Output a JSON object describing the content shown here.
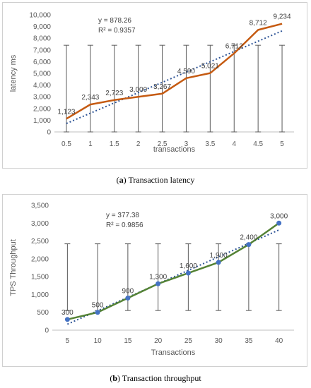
{
  "chart_data": [
    {
      "type": "line",
      "panel_letter": "a",
      "caption": "Transaction latency",
      "xlabel": "transactions",
      "ylabel": "latency ms",
      "categories": [
        "0.5",
        "1",
        "1.5",
        "2",
        "2.5",
        "3",
        "3.5",
        "4",
        "4.5",
        "5"
      ],
      "series": [
        {
          "values": [
            1123,
            2343,
            2723,
            3000,
            3267,
            4590,
            5021,
            6712,
            8712,
            9234
          ],
          "data_labels": [
            "1,123",
            "2,343",
            "2,723",
            "3,000",
            "3,267",
            "4,590",
            "5,021",
            "6,712",
            "8,712",
            "9,234"
          ],
          "color": "#c55a11",
          "markers": false
        }
      ],
      "trendline": {
        "type": "linear",
        "color": "#2f5597",
        "style": "dotted",
        "equation": "y = 878.26",
        "r_squared": "R² = 0.9357"
      },
      "error_bars": {
        "low": 0,
        "high": 7400,
        "color": "#595959"
      },
      "ylim": [
        0,
        10000
      ],
      "yticks": [
        "0",
        "1,000",
        "2,000",
        "3,000",
        "4,000",
        "5,000",
        "6,000",
        "7,000",
        "8,000",
        "9,000",
        "10,000"
      ],
      "grid": false,
      "legend": "none"
    },
    {
      "type": "line",
      "panel_letter": "b",
      "caption": "Transaction throughput",
      "xlabel": "Transactions",
      "ylabel": "TPS Throughput",
      "categories": [
        "5",
        "10",
        "15",
        "20",
        "25",
        "30",
        "35",
        "40"
      ],
      "series": [
        {
          "values": [
            300,
            500,
            900,
            1300,
            1600,
            1900,
            2400,
            3000
          ],
          "data_labels": [
            "300",
            "500",
            "900",
            "1,300",
            "1,600",
            "1,900",
            "2,400",
            "3,000"
          ],
          "color": "#548235",
          "marker_color": "#4472c4",
          "markers": true
        }
      ],
      "trendline": {
        "type": "linear",
        "color": "#2f5597",
        "style": "dotted",
        "equation": "y = 377.38",
        "r_squared": "R² = 0.9856"
      },
      "error_bars": {
        "low": 550,
        "high": 2420,
        "color": "#595959"
      },
      "ylim": [
        0,
        3500
      ],
      "yticks": [
        "0",
        "500",
        "1,000",
        "1,500",
        "2,000",
        "2,500",
        "3,000",
        "3,500"
      ],
      "grid": false,
      "legend": "none"
    }
  ]
}
